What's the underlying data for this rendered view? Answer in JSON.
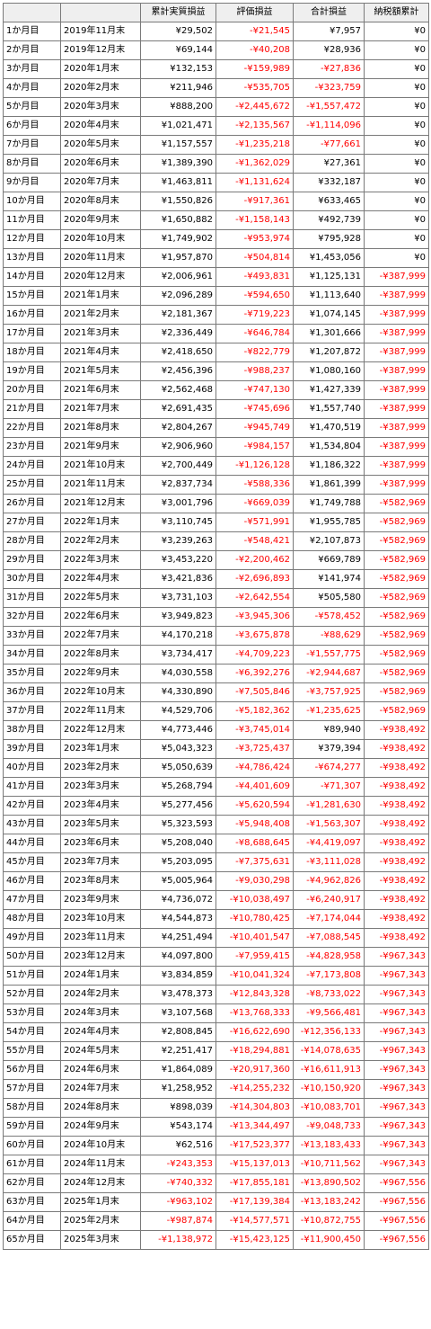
{
  "headers": [
    "",
    "",
    "累計実質損益",
    "評価損益",
    "合計損益",
    "納税額累計"
  ],
  "rows": [
    [
      "1か月目",
      "2019年11月末",
      "¥29,502",
      "-¥21,545",
      "¥7,957",
      "¥0"
    ],
    [
      "2か月目",
      "2019年12月末",
      "¥69,144",
      "-¥40,208",
      "¥28,936",
      "¥0"
    ],
    [
      "3か月目",
      "2020年1月末",
      "¥132,153",
      "-¥159,989",
      "-¥27,836",
      "¥0"
    ],
    [
      "4か月目",
      "2020年2月末",
      "¥211,946",
      "-¥535,705",
      "-¥323,759",
      "¥0"
    ],
    [
      "5か月目",
      "2020年3月末",
      "¥888,200",
      "-¥2,445,672",
      "-¥1,557,472",
      "¥0"
    ],
    [
      "6か月目",
      "2020年4月末",
      "¥1,021,471",
      "-¥2,135,567",
      "-¥1,114,096",
      "¥0"
    ],
    [
      "7か月目",
      "2020年5月末",
      "¥1,157,557",
      "-¥1,235,218",
      "-¥77,661",
      "¥0"
    ],
    [
      "8か月目",
      "2020年6月末",
      "¥1,389,390",
      "-¥1,362,029",
      "¥27,361",
      "¥0"
    ],
    [
      "9か月目",
      "2020年7月末",
      "¥1,463,811",
      "-¥1,131,624",
      "¥332,187",
      "¥0"
    ],
    [
      "10か月目",
      "2020年8月末",
      "¥1,550,826",
      "-¥917,361",
      "¥633,465",
      "¥0"
    ],
    [
      "11か月目",
      "2020年9月末",
      "¥1,650,882",
      "-¥1,158,143",
      "¥492,739",
      "¥0"
    ],
    [
      "12か月目",
      "2020年10月末",
      "¥1,749,902",
      "-¥953,974",
      "¥795,928",
      "¥0"
    ],
    [
      "13か月目",
      "2020年11月末",
      "¥1,957,870",
      "-¥504,814",
      "¥1,453,056",
      "¥0"
    ],
    [
      "14か月目",
      "2020年12月末",
      "¥2,006,961",
      "-¥493,831",
      "¥1,125,131",
      "-¥387,999"
    ],
    [
      "15か月目",
      "2021年1月末",
      "¥2,096,289",
      "-¥594,650",
      "¥1,113,640",
      "-¥387,999"
    ],
    [
      "16か月目",
      "2021年2月末",
      "¥2,181,367",
      "-¥719,223",
      "¥1,074,145",
      "-¥387,999"
    ],
    [
      "17か月目",
      "2021年3月末",
      "¥2,336,449",
      "-¥646,784",
      "¥1,301,666",
      "-¥387,999"
    ],
    [
      "18か月目",
      "2021年4月末",
      "¥2,418,650",
      "-¥822,779",
      "¥1,207,872",
      "-¥387,999"
    ],
    [
      "19か月目",
      "2021年5月末",
      "¥2,456,396",
      "-¥988,237",
      "¥1,080,160",
      "-¥387,999"
    ],
    [
      "20か月目",
      "2021年6月末",
      "¥2,562,468",
      "-¥747,130",
      "¥1,427,339",
      "-¥387,999"
    ],
    [
      "21か月目",
      "2021年7月末",
      "¥2,691,435",
      "-¥745,696",
      "¥1,557,740",
      "-¥387,999"
    ],
    [
      "22か月目",
      "2021年8月末",
      "¥2,804,267",
      "-¥945,749",
      "¥1,470,519",
      "-¥387,999"
    ],
    [
      "23か月目",
      "2021年9月末",
      "¥2,906,960",
      "-¥984,157",
      "¥1,534,804",
      "-¥387,999"
    ],
    [
      "24か月目",
      "2021年10月末",
      "¥2,700,449",
      "-¥1,126,128",
      "¥1,186,322",
      "-¥387,999"
    ],
    [
      "25か月目",
      "2021年11月末",
      "¥2,837,734",
      "-¥588,336",
      "¥1,861,399",
      "-¥387,999"
    ],
    [
      "26か月目",
      "2021年12月末",
      "¥3,001,796",
      "-¥669,039",
      "¥1,749,788",
      "-¥582,969"
    ],
    [
      "27か月目",
      "2022年1月末",
      "¥3,110,745",
      "-¥571,991",
      "¥1,955,785",
      "-¥582,969"
    ],
    [
      "28か月目",
      "2022年2月末",
      "¥3,239,263",
      "-¥548,421",
      "¥2,107,873",
      "-¥582,969"
    ],
    [
      "29か月目",
      "2022年3月末",
      "¥3,453,220",
      "-¥2,200,462",
      "¥669,789",
      "-¥582,969"
    ],
    [
      "30か月目",
      "2022年4月末",
      "¥3,421,836",
      "-¥2,696,893",
      "¥141,974",
      "-¥582,969"
    ],
    [
      "31か月目",
      "2022年5月末",
      "¥3,731,103",
      "-¥2,642,554",
      "¥505,580",
      "-¥582,969"
    ],
    [
      "32か月目",
      "2022年6月末",
      "¥3,949,823",
      "-¥3,945,306",
      "-¥578,452",
      "-¥582,969"
    ],
    [
      "33か月目",
      "2022年7月末",
      "¥4,170,218",
      "-¥3,675,878",
      "-¥88,629",
      "-¥582,969"
    ],
    [
      "34か月目",
      "2022年8月末",
      "¥3,734,417",
      "-¥4,709,223",
      "-¥1,557,775",
      "-¥582,969"
    ],
    [
      "35か月目",
      "2022年9月末",
      "¥4,030,558",
      "-¥6,392,276",
      "-¥2,944,687",
      "-¥582,969"
    ],
    [
      "36か月目",
      "2022年10月末",
      "¥4,330,890",
      "-¥7,505,846",
      "-¥3,757,925",
      "-¥582,969"
    ],
    [
      "37か月目",
      "2022年11月末",
      "¥4,529,706",
      "-¥5,182,362",
      "-¥1,235,625",
      "-¥582,969"
    ],
    [
      "38か月目",
      "2022年12月末",
      "¥4,773,446",
      "-¥3,745,014",
      "¥89,940",
      "-¥938,492"
    ],
    [
      "39か月目",
      "2023年1月末",
      "¥5,043,323",
      "-¥3,725,437",
      "¥379,394",
      "-¥938,492"
    ],
    [
      "40か月目",
      "2023年2月末",
      "¥5,050,639",
      "-¥4,786,424",
      "-¥674,277",
      "-¥938,492"
    ],
    [
      "41か月目",
      "2023年3月末",
      "¥5,268,794",
      "-¥4,401,609",
      "-¥71,307",
      "-¥938,492"
    ],
    [
      "42か月目",
      "2023年4月末",
      "¥5,277,456",
      "-¥5,620,594",
      "-¥1,281,630",
      "-¥938,492"
    ],
    [
      "43か月目",
      "2023年5月末",
      "¥5,323,593",
      "-¥5,948,408",
      "-¥1,563,307",
      "-¥938,492"
    ],
    [
      "44か月目",
      "2023年6月末",
      "¥5,208,040",
      "-¥8,688,645",
      "-¥4,419,097",
      "-¥938,492"
    ],
    [
      "45か月目",
      "2023年7月末",
      "¥5,203,095",
      "-¥7,375,631",
      "-¥3,111,028",
      "-¥938,492"
    ],
    [
      "46か月目",
      "2023年8月末",
      "¥5,005,964",
      "-¥9,030,298",
      "-¥4,962,826",
      "-¥938,492"
    ],
    [
      "47か月目",
      "2023年9月末",
      "¥4,736,072",
      "-¥10,038,497",
      "-¥6,240,917",
      "-¥938,492"
    ],
    [
      "48か月目",
      "2023年10月末",
      "¥4,544,873",
      "-¥10,780,425",
      "-¥7,174,044",
      "-¥938,492"
    ],
    [
      "49か月目",
      "2023年11月末",
      "¥4,251,494",
      "-¥10,401,547",
      "-¥7,088,545",
      "-¥938,492"
    ],
    [
      "50か月目",
      "2023年12月末",
      "¥4,097,800",
      "-¥7,959,415",
      "-¥4,828,958",
      "-¥967,343"
    ],
    [
      "51か月目",
      "2024年1月末",
      "¥3,834,859",
      "-¥10,041,324",
      "-¥7,173,808",
      "-¥967,343"
    ],
    [
      "52か月目",
      "2024年2月末",
      "¥3,478,373",
      "-¥12,843,328",
      "-¥8,733,022",
      "-¥967,343"
    ],
    [
      "53か月目",
      "2024年3月末",
      "¥3,107,568",
      "-¥13,768,333",
      "-¥9,566,481",
      "-¥967,343"
    ],
    [
      "54か月目",
      "2024年4月末",
      "¥2,808,845",
      "-¥16,622,690",
      "-¥12,356,133",
      "-¥967,343"
    ],
    [
      "55か月目",
      "2024年5月末",
      "¥2,251,417",
      "-¥18,294,881",
      "-¥14,078,635",
      "-¥967,343"
    ],
    [
      "56か月目",
      "2024年6月末",
      "¥1,864,089",
      "-¥20,917,360",
      "-¥16,611,913",
      "-¥967,343"
    ],
    [
      "57か月目",
      "2024年7月末",
      "¥1,258,952",
      "-¥14,255,232",
      "-¥10,150,920",
      "-¥967,343"
    ],
    [
      "58か月目",
      "2024年8月末",
      "¥898,039",
      "-¥14,304,803",
      "-¥10,083,701",
      "-¥967,343"
    ],
    [
      "59か月目",
      "2024年9月末",
      "¥543,174",
      "-¥13,344,497",
      "-¥9,048,733",
      "-¥967,343"
    ],
    [
      "60か月目",
      "2024年10月末",
      "¥62,516",
      "-¥17,523,377",
      "-¥13,183,433",
      "-¥967,343"
    ],
    [
      "61か月目",
      "2024年11月末",
      "-¥243,353",
      "-¥15,137,013",
      "-¥10,711,562",
      "-¥967,343"
    ],
    [
      "62か月目",
      "2024年12月末",
      "-¥740,332",
      "-¥17,855,181",
      "-¥13,890,502",
      "-¥967,556"
    ],
    [
      "63か月目",
      "2025年1月末",
      "-¥963,102",
      "-¥17,139,384",
      "-¥13,183,242",
      "-¥967,556"
    ],
    [
      "64か月目",
      "2025年2月末",
      "-¥987,874",
      "-¥14,577,571",
      "-¥10,872,755",
      "-¥967,556"
    ],
    [
      "65か月目",
      "2025年3月末",
      "-¥1,138,972",
      "-¥15,423,125",
      "-¥11,900,450",
      "-¥967,556"
    ]
  ]
}
